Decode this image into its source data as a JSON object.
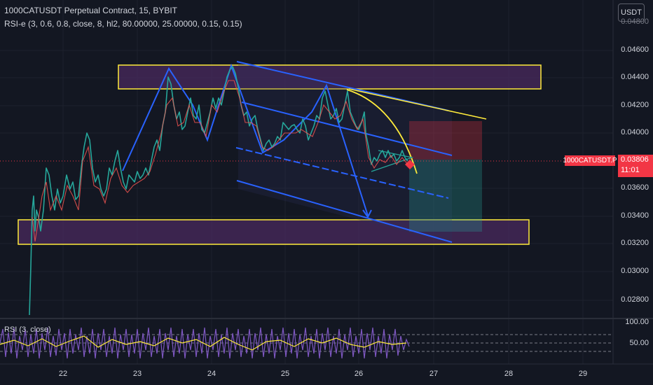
{
  "header": {
    "title": "1000CATUSDT Perpetual Contract, 15, BYBIT",
    "indicator": "RSI-e (3, 0.6, 0.8, close, 8, hl2, 80.00000, 25.00000, 0.15, 0.15)",
    "currency_button": "USDT"
  },
  "price_axis": {
    "partial_top": "0.04800",
    "labels": [
      "0.04600",
      "0.04400",
      "0.04200",
      "0.04000",
      "0.03600",
      "0.03400",
      "0.03200",
      "0.03000",
      "0.02800"
    ]
  },
  "price_tag": {
    "symbol": "1000CATUSDT.P",
    "price": "0.03806",
    "countdown": "11:01"
  },
  "rsi_pane": {
    "label": "RSI (3, close)",
    "levels": [
      "100.00",
      "50.00"
    ]
  },
  "time_axis": {
    "labels": [
      "22",
      "23",
      "24",
      "25",
      "26",
      "27",
      "28",
      "29"
    ]
  },
  "colors": {
    "background": "#131722",
    "zone_border": "#ffeb3b",
    "zone_fill": "#4a2a5e",
    "trendline": "#2962ff",
    "price_tag": "#f23645",
    "rsi_line": "#7e57c2",
    "rsi_signal": "#ffeb3b"
  }
}
